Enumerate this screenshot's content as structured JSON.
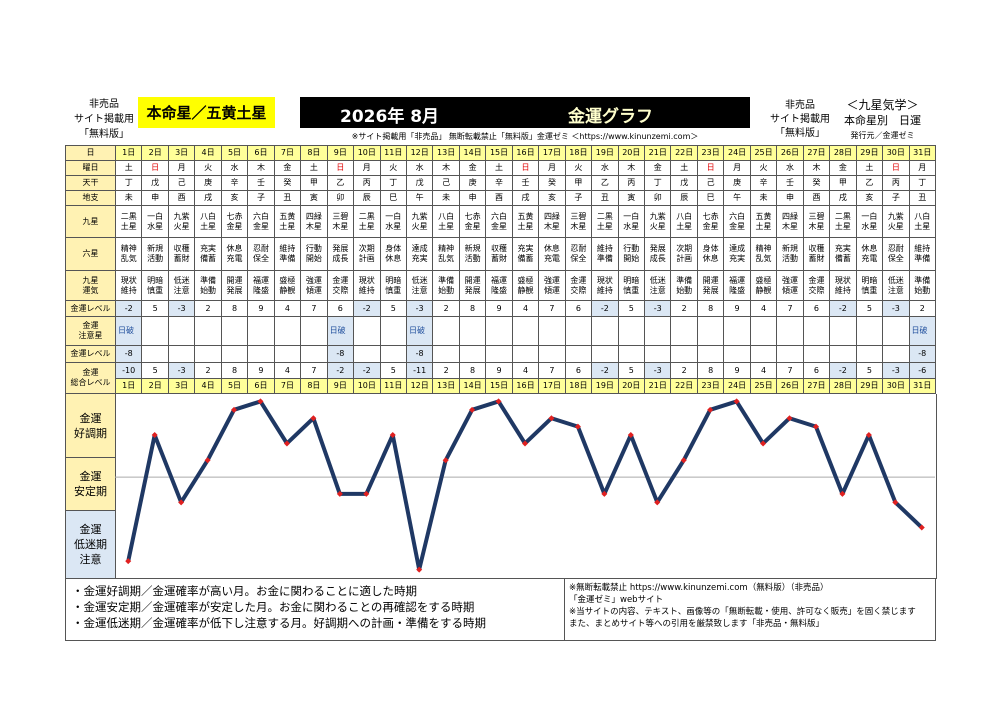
{
  "header": {
    "left_note": [
      "非売品",
      "サイト掲載用",
      "「無料版」"
    ],
    "honmei": "本命星／五黄土星",
    "month": "2026年 8月",
    "title": "金運グラフ",
    "notice": "※サイト掲載用「非売品」 無断転載禁止「無料版」金運ゼミ ＜https://www.kinunzemi.com＞",
    "right_note": [
      "非売品",
      "サイト掲載用",
      "「無料版」"
    ],
    "publisher": [
      "＜九星気学＞",
      "本命星別　日運",
      "発行元／金運ゼミ"
    ]
  },
  "table": {
    "row_labels": [
      [
        "日"
      ],
      [
        "曜日"
      ],
      [
        "天干"
      ],
      [
        "地支"
      ],
      [
        "九星"
      ],
      [
        "六星"
      ],
      [
        "九星",
        "運気"
      ],
      [
        "金運レベル"
      ],
      [
        "金運",
        "注意星"
      ],
      [
        "金運レベル"
      ],
      [
        "金運",
        "総合レベル"
      ]
    ],
    "days": [
      "1日",
      "2日",
      "3日",
      "4日",
      "5日",
      "6日",
      "7日",
      "8日",
      "9日",
      "10日",
      "11日",
      "12日",
      "13日",
      "14日",
      "15日",
      "16日",
      "17日",
      "18日",
      "19日",
      "20日",
      "21日",
      "22日",
      "23日",
      "24日",
      "25日",
      "26日",
      "27日",
      "28日",
      "29日",
      "30日",
      "31日"
    ],
    "weekday": [
      "土",
      "日",
      "月",
      "火",
      "水",
      "木",
      "金",
      "土",
      "日",
      "月",
      "火",
      "水",
      "木",
      "金",
      "土",
      "日",
      "月",
      "火",
      "水",
      "木",
      "金",
      "土",
      "日",
      "月",
      "火",
      "水",
      "木",
      "金",
      "土",
      "日",
      "月"
    ],
    "tenkan": [
      "丁",
      "戊",
      "己",
      "庚",
      "辛",
      "壬",
      "癸",
      "甲",
      "乙",
      "丙",
      "丁",
      "戊",
      "己",
      "庚",
      "辛",
      "壬",
      "癸",
      "甲",
      "乙",
      "丙",
      "丁",
      "戊",
      "己",
      "庚",
      "辛",
      "壬",
      "癸",
      "甲",
      "乙",
      "丙",
      "丁"
    ],
    "chishi": [
      "未",
      "申",
      "酉",
      "戌",
      "亥",
      "子",
      "丑",
      "寅",
      "卯",
      "辰",
      "巳",
      "午",
      "未",
      "申",
      "酉",
      "戌",
      "亥",
      "子",
      "丑",
      "寅",
      "卯",
      "辰",
      "巳",
      "午",
      "未",
      "申",
      "酉",
      "戌",
      "亥",
      "子",
      "丑"
    ],
    "kyusei": [
      "二黒土星",
      "一白水星",
      "九紫火星",
      "八白土星",
      "七赤金星",
      "六白金星",
      "五黄土星",
      "四緑木星",
      "三碧木星",
      "二黒土星",
      "一白水星",
      "九紫火星",
      "八白土星",
      "七赤金星",
      "六白金星",
      "五黄土星",
      "四緑木星",
      "三碧木星",
      "二黒土星",
      "一白水星",
      "九紫火星",
      "八白土星",
      "七赤金星",
      "六白金星",
      "五黄土星",
      "四緑木星",
      "三碧木星",
      "二黒土星",
      "一白水星",
      "九紫火星",
      "八白土星"
    ],
    "rokusei": [
      "精神乱気",
      "新規活動",
      "収穫蓄財",
      "充実備蓄",
      "休息充電",
      "忍耐保全",
      "維持準備",
      "行動開始",
      "発展成長",
      "次期計画",
      "身体休息",
      "達成充実",
      "精神乱気",
      "新規活動",
      "収穫蓄財",
      "充実備蓄",
      "休息充電",
      "忍耐保全",
      "維持準備",
      "行動開始",
      "発展成長",
      "次期計画",
      "身体休息",
      "達成充実",
      "精神乱気",
      "新規活動",
      "収穫蓄財",
      "充実備蓄",
      "休息充電",
      "忍耐保全",
      "維持準備"
    ],
    "unki": [
      "現状維持",
      "明暗慎重",
      "低迷注意",
      "準備始動",
      "開運発展",
      "福運隆盛",
      "盛極静観",
      "強運傾運",
      "金運交際",
      "現状維持",
      "明暗慎重",
      "低迷注意",
      "準備始動",
      "開運発展",
      "福運隆盛",
      "盛極静観",
      "強運傾運",
      "金運交際",
      "現状維持",
      "明暗慎重",
      "低迷注意",
      "準備始動",
      "開運発展",
      "福運隆盛",
      "盛極静観",
      "強運傾運",
      "金運交際",
      "現状維持",
      "明暗慎重",
      "低迷注意",
      "準備始動"
    ],
    "level": [
      -2,
      5,
      -3,
      2,
      8,
      9,
      4,
      7,
      6,
      -2,
      5,
      -3,
      2,
      8,
      9,
      4,
      7,
      6,
      -2,
      5,
      -3,
      2,
      8,
      9,
      4,
      7,
      6,
      -2,
      5,
      -3,
      2
    ],
    "caution_star": [
      "日破",
      null,
      null,
      null,
      null,
      null,
      null,
      null,
      "日破",
      null,
      null,
      "日破",
      null,
      null,
      null,
      null,
      null,
      null,
      null,
      null,
      null,
      null,
      null,
      null,
      null,
      null,
      null,
      null,
      null,
      null,
      "日破"
    ],
    "caution_level": [
      -8,
      null,
      null,
      null,
      null,
      null,
      null,
      null,
      -8,
      null,
      null,
      -8,
      null,
      null,
      null,
      null,
      null,
      null,
      null,
      null,
      null,
      null,
      null,
      null,
      null,
      null,
      null,
      null,
      null,
      null,
      -8
    ]
  },
  "chart_data": {
    "type": "line",
    "categories": [
      "1日",
      "2日",
      "3日",
      "4日",
      "5日",
      "6日",
      "7日",
      "8日",
      "9日",
      "10日",
      "11日",
      "12日",
      "13日",
      "14日",
      "15日",
      "16日",
      "17日",
      "18日",
      "19日",
      "20日",
      "21日",
      "22日",
      "23日",
      "24日",
      "25日",
      "26日",
      "27日",
      "28日",
      "29日",
      "30日",
      "31日"
    ],
    "values": [
      -10,
      5,
      -3,
      2,
      8,
      9,
      4,
      7,
      -2,
      -2,
      5,
      -11,
      2,
      8,
      9,
      4,
      7,
      6,
      -2,
      5,
      -3,
      2,
      8,
      9,
      4,
      7,
      6,
      -2,
      5,
      -3,
      -6
    ],
    "ylim": [
      -12,
      10
    ],
    "color": "#1f3864",
    "marker_color": "#e02020",
    "bands": [
      [
        "金運",
        "好調期"
      ],
      [
        "金運",
        "安定期"
      ],
      [
        "金運",
        "低迷期",
        "注意"
      ]
    ]
  },
  "footer": {
    "left": [
      "・金運好調期／金運確率が高い月。お金に関わることに適した時期",
      "・金運安定期／金運確率が安定した月。お金に関わることの再確認をする時期",
      "・金運低迷期／金運確率が低下し注意する月。好調期への計画・準備をする時期"
    ],
    "right": [
      "※無断転載禁止 https://www.kinunzemi.com（無料版）（非売品）",
      "「金運ゼミ」webサイト",
      "※当サイトの内容、テキスト、画像等の「無断転載・使用、許可なく販売」を固く禁じます",
      "また、まとめサイト等への引用を厳禁致します「非売品・無料版」"
    ]
  }
}
